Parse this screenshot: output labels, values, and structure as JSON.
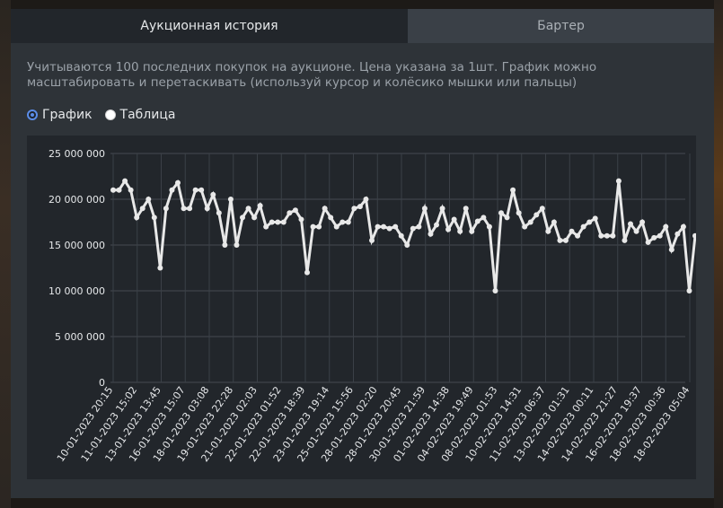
{
  "tabs": [
    {
      "label": "Аукционная история",
      "active": true
    },
    {
      "label": "Бартер",
      "active": false
    }
  ],
  "description": "Учитываются 100 последних покупок на аукционе. Цена указана за 1шт. График можно масштабировать и перетаскивать (используй курсор и колёсико мышки или пальцы)",
  "view_options": {
    "chart_label": "График",
    "table_label": "Таблица",
    "selected": "График"
  },
  "colors": {
    "accent": "#5b8de8",
    "line": "#e8e8e8",
    "panel": "#2e3338",
    "chart_bg": "#22262b"
  },
  "chart_data": {
    "type": "line",
    "title": "",
    "xlabel": "",
    "ylabel": "",
    "ylim": [
      0,
      25000000
    ],
    "yticks": [
      0,
      5000000,
      10000000,
      15000000,
      20000000,
      25000000
    ],
    "ytick_labels": [
      "0",
      "5 000 000",
      "10 000 000",
      "15 000 000",
      "20 000 000",
      "25 000 000"
    ],
    "grid": true,
    "xtick_labels": [
      "10-01-2023 20:15",
      "11-01-2023 15:02",
      "13-01-2023 13:45",
      "16-01-2023 15:07",
      "18-01-2023 03:08",
      "19-01-2023 22:28",
      "21-01-2023 02:03",
      "22-01-2023 01:52",
      "22-01-2023 18:39",
      "23-01-2023 19:14",
      "25-01-2023 15:56",
      "28-01-2023 02:20",
      "28-01-2023 20:45",
      "30-01-2023 21:59",
      "01-02-2023 14:38",
      "04-02-2023 19:49",
      "08-02-2023 01:53",
      "10-02-2023 14:31",
      "11-02-2023 06:37",
      "13-02-2023 01:31",
      "14-02-2023 00:11",
      "14-02-2023 21:27",
      "16-02-2023 19:37",
      "18-02-2023 00:36",
      "18-02-2023 05:04"
    ],
    "series": [
      {
        "values": [
          21000000,
          21000000,
          22000000,
          21000000,
          18000000,
          19000000,
          20000000,
          18000000,
          12500000,
          19000000,
          21000000,
          21800000,
          19000000,
          19000000,
          21000000,
          21000000,
          19000000,
          20500000,
          18500000,
          15000000,
          20000000,
          15000000,
          18000000,
          19000000,
          18000000,
          19300000,
          17000000,
          17500000,
          17500000,
          17500000,
          18500000,
          18800000,
          17800000,
          12000000,
          17000000,
          17000000,
          19000000,
          18000000,
          17000000,
          17500000,
          17500000,
          19000000,
          19200000,
          20000000,
          15500000,
          17000000,
          17000000,
          16800000,
          17000000,
          16000000,
          15000000,
          16800000,
          17000000,
          19000000,
          16200000,
          17200000,
          19000000,
          16700000,
          17800000,
          16500000,
          19000000,
          16500000,
          17600000,
          18000000,
          17000000,
          10000000,
          18500000,
          18000000,
          21000000,
          18500000,
          17000000,
          17500000,
          18300000,
          19000000,
          16500000,
          17500000,
          15500000,
          15500000,
          16500000,
          16000000,
          17000000,
          17500000,
          17900000,
          16000000,
          16000000,
          16000000,
          22000000,
          15500000,
          17300000,
          16500000,
          17500000,
          15300000,
          15800000,
          16000000,
          17000000,
          14500000,
          16200000,
          17000000,
          10000000,
          16000000
        ]
      }
    ]
  }
}
